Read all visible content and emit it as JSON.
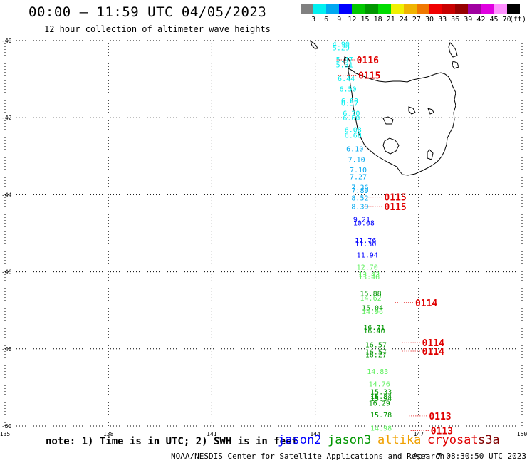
{
  "header": {
    "title": "00:00 – 11:59 UTC 04/05/2023",
    "subtitle": "12 hour collection of altimeter wave heights"
  },
  "color_scale": {
    "labels": [
      "3",
      "6",
      "9",
      "12",
      "15",
      "18",
      "21",
      "24",
      "27",
      "30",
      "33",
      "36",
      "39",
      "42",
      "45",
      "70"
    ],
    "unit": "(ft)",
    "colors": [
      "#808080",
      "#00f0f0",
      "#00a8f0",
      "#0000ff",
      "#00c800",
      "#009600",
      "#00dc00",
      "#f0f000",
      "#f0b400",
      "#f07800",
      "#f00000",
      "#c80000",
      "#960000",
      "#a000a0",
      "#e000e0",
      "#ff90ff",
      "#000000"
    ]
  },
  "map": {
    "lat_labels": [
      "-40",
      "-42",
      "-44",
      "-46",
      "-48",
      "-50"
    ],
    "lon_labels": [
      "135",
      "138",
      "141",
      "144",
      "147",
      "150"
    ],
    "observations": [
      {
        "lat": -40.08,
        "lon": 144.5,
        "value": "4.90",
        "color": "#00f0f0"
      },
      {
        "lat": -40.18,
        "lon": 144.5,
        "value": "5.29",
        "color": "#00f0f0"
      },
      {
        "lat": -40.48,
        "lon": 144.6,
        "value": "5.47",
        "color": "#00f0f0"
      },
      {
        "lat": -40.62,
        "lon": 144.6,
        "value": "5.31",
        "color": "#00f0f0"
      },
      {
        "lat": -40.98,
        "lon": 144.65,
        "value": "6.44",
        "color": "#00f0f0"
      },
      {
        "lat": -41.25,
        "lon": 144.7,
        "value": "6.50",
        "color": "#00f0f0"
      },
      {
        "lat": -41.55,
        "lon": 144.75,
        "value": "6.60",
        "color": "#00f0f0"
      },
      {
        "lat": -41.62,
        "lon": 144.75,
        "value": "6.57",
        "color": "#00f0f0"
      },
      {
        "lat": -41.88,
        "lon": 144.8,
        "value": "6.20",
        "color": "#00f0f0"
      },
      {
        "lat": -42.0,
        "lon": 144.8,
        "value": "6.60",
        "color": "#00f0f0"
      },
      {
        "lat": -42.3,
        "lon": 144.85,
        "value": "6.08",
        "color": "#00f0f0"
      },
      {
        "lat": -42.45,
        "lon": 144.85,
        "value": "6.68",
        "color": "#00f0f0"
      },
      {
        "lat": -42.8,
        "lon": 144.9,
        "value": "6.10",
        "color": "#00a8f0"
      },
      {
        "lat": -43.08,
        "lon": 144.95,
        "value": "7.10",
        "color": "#00a8f0"
      },
      {
        "lat": -43.35,
        "lon": 145.0,
        "value": "7.10",
        "color": "#00a8f0"
      },
      {
        "lat": -43.52,
        "lon": 145.0,
        "value": "7.27",
        "color": "#00a8f0"
      },
      {
        "lat": -43.8,
        "lon": 145.05,
        "value": "7.36",
        "color": "#00a8f0"
      },
      {
        "lat": -43.88,
        "lon": 145.05,
        "value": "7.89",
        "color": "#00a8f0"
      },
      {
        "lat": -44.08,
        "lon": 145.05,
        "value": "8.52",
        "color": "#00a8f0"
      },
      {
        "lat": -44.3,
        "lon": 145.05,
        "value": "8.39",
        "color": "#00a8f0"
      },
      {
        "lat": -44.63,
        "lon": 145.1,
        "value": "9.21",
        "color": "#0000ff"
      },
      {
        "lat": -44.72,
        "lon": 145.1,
        "value": "10.08",
        "color": "#0000ff"
      },
      {
        "lat": -45.18,
        "lon": 145.15,
        "value": "11.76",
        "color": "#0000ff"
      },
      {
        "lat": -45.27,
        "lon": 145.15,
        "value": "11.30",
        "color": "#0000ff"
      },
      {
        "lat": -45.55,
        "lon": 145.2,
        "value": "11.94",
        "color": "#0000ff"
      },
      {
        "lat": -45.87,
        "lon": 145.2,
        "value": "12.70",
        "color": "#60f060"
      },
      {
        "lat": -46.05,
        "lon": 145.25,
        "value": "13.43",
        "color": "#60f060"
      },
      {
        "lat": -46.12,
        "lon": 145.25,
        "value": "13.46",
        "color": "#60f060"
      },
      {
        "lat": -46.55,
        "lon": 145.3,
        "value": "15.88",
        "color": "#009600"
      },
      {
        "lat": -46.67,
        "lon": 145.3,
        "value": "14.62",
        "color": "#60f060"
      },
      {
        "lat": -46.92,
        "lon": 145.35,
        "value": "15.04",
        "color": "#009600"
      },
      {
        "lat": -47.02,
        "lon": 145.35,
        "value": "14.96",
        "color": "#60f060"
      },
      {
        "lat": -47.43,
        "lon": 145.4,
        "value": "16.71",
        "color": "#009600"
      },
      {
        "lat": -47.52,
        "lon": 145.4,
        "value": "16.40",
        "color": "#009600"
      },
      {
        "lat": -47.88,
        "lon": 145.45,
        "value": "16.57",
        "color": "#009600"
      },
      {
        "lat": -48.07,
        "lon": 145.45,
        "value": "16.57",
        "color": "#009600"
      },
      {
        "lat": -48.14,
        "lon": 145.45,
        "value": "16.27",
        "color": "#009600"
      },
      {
        "lat": -48.58,
        "lon": 145.5,
        "value": "14.83",
        "color": "#60f060"
      },
      {
        "lat": -48.9,
        "lon": 145.55,
        "value": "14.76",
        "color": "#60f060"
      },
      {
        "lat": -49.1,
        "lon": 145.6,
        "value": "15.33",
        "color": "#009600"
      },
      {
        "lat": -49.22,
        "lon": 145.6,
        "value": "15.84",
        "color": "#009600"
      },
      {
        "lat": -49.28,
        "lon": 145.6,
        "value": "15.94",
        "color": "#009600"
      },
      {
        "lat": -49.4,
        "lon": 145.55,
        "value": "16.29",
        "color": "#009600"
      },
      {
        "lat": -49.7,
        "lon": 145.6,
        "value": "15.78",
        "color": "#009600"
      },
      {
        "lat": -50.05,
        "lon": 145.6,
        "value": "14.98",
        "color": "#60f060"
      }
    ],
    "tracks": [
      {
        "lat": -40.5,
        "lon": 145.2,
        "label": "0116"
      },
      {
        "lat": -40.9,
        "lon": 145.25,
        "label": "0115"
      },
      {
        "lat": -44.06,
        "lon": 146.0,
        "label": "0115"
      },
      {
        "lat": -44.31,
        "lon": 146.0,
        "label": "0115"
      },
      {
        "lat": -46.8,
        "lon": 146.9,
        "label": "0114"
      },
      {
        "lat": -47.84,
        "lon": 147.1,
        "label": "0114"
      },
      {
        "lat": -48.06,
        "lon": 147.1,
        "label": "0114"
      },
      {
        "lat": -49.74,
        "lon": 147.3,
        "label": "0113"
      },
      {
        "lat": -50.12,
        "lon": 147.35,
        "label": "0113"
      }
    ],
    "track_color": "#e00000"
  },
  "legend": {
    "note": "note: 1) Time is in UTC; 2) SWH is in feet",
    "satellites": [
      {
        "name": "jason2",
        "color": "#0000ff"
      },
      {
        "name": "jason3",
        "color": "#009600"
      },
      {
        "name": "altika",
        "color": "#f0a000"
      },
      {
        "name": "cryosat",
        "color": "#e00000"
      },
      {
        "name": "s3a",
        "color": "#800000"
      }
    ]
  },
  "footer": {
    "credit": "NOAA/NESDIS Center for Satellite Applications and Research",
    "timestamp": "Apr  7 08:30:50 UTC 2023"
  }
}
